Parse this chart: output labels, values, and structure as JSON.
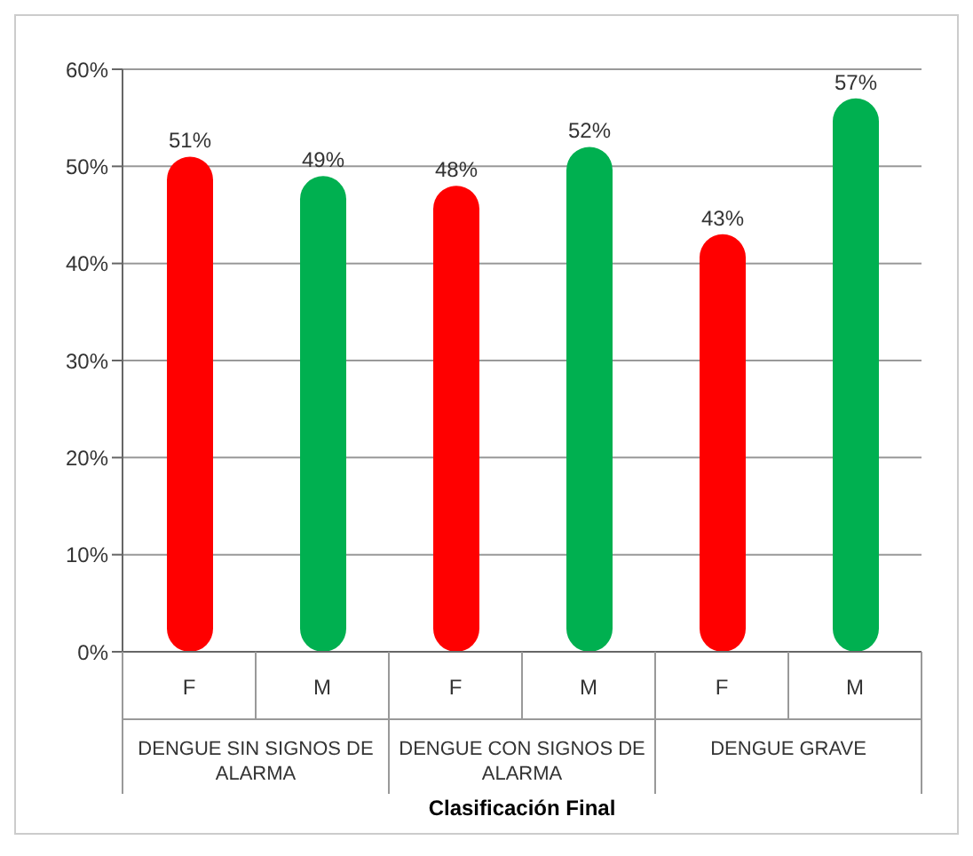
{
  "chart_data": {
    "type": "bar",
    "xlabel": "Clasificación Final",
    "categories": [
      "F",
      "M",
      "F",
      "M",
      "F",
      "M"
    ],
    "values": [
      51,
      49,
      48,
      52,
      43,
      57
    ],
    "colors": [
      "#ff0000",
      "#00b050",
      "#ff0000",
      "#00b050",
      "#ff0000",
      "#00b050"
    ],
    "value_labels": [
      "51%",
      "49%",
      "48%",
      "52%",
      "43%",
      "57%"
    ],
    "ylim": [
      0,
      60
    ],
    "yticks": [
      {
        "value": 0,
        "label": "0%"
      },
      {
        "value": 10,
        "label": "10%"
      },
      {
        "value": 20,
        "label": "20%"
      },
      {
        "value": 30,
        "label": "30%"
      },
      {
        "value": 40,
        "label": "40%"
      },
      {
        "value": 50,
        "label": "50%"
      },
      {
        "value": 60,
        "label": "60%"
      }
    ],
    "grid": "y",
    "annotations": [
      "DENGUE SIN SIGNOS DE ALARMA",
      "DENGUE CON SIGNOS DE ALARMA",
      "DENGUE GRAVE"
    ]
  }
}
